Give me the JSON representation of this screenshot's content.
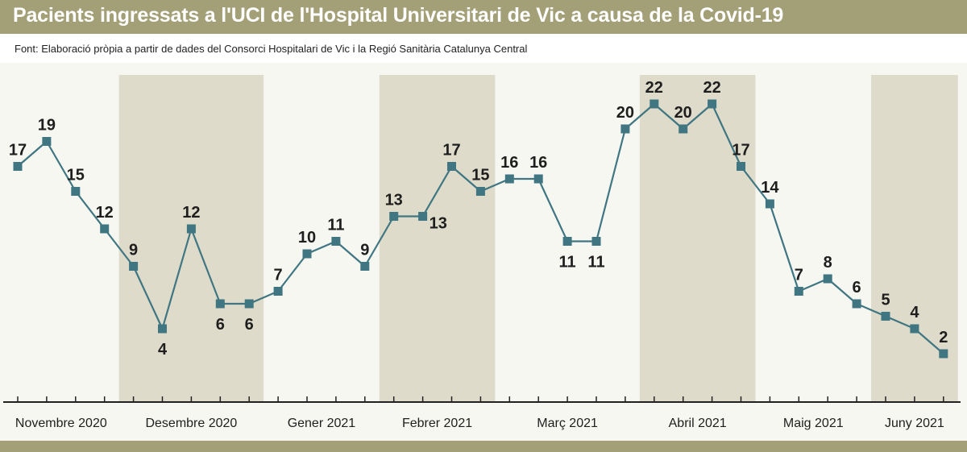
{
  "title": "Pacients ingressats a l'UCI de l'Hospital Universitari de Vic a causa de la Covid-19",
  "source": "Font: Elaboració pròpia a partir de dades del Consorci Hospitalari de Vic i la Regió Sanitària Catalunya Central",
  "colors": {
    "header": "#a39f77",
    "plot_background": "#f7f7f2",
    "shaded_band": "#dedbca",
    "line": "#3f7682",
    "marker": "#3f7682",
    "axis": "#222222"
  },
  "chart_data": {
    "type": "line",
    "title": "Pacients ingressats a l'UCI de l'Hospital Universitari de Vic a causa de la Covid-19",
    "xlabel": "",
    "ylabel": "",
    "ylim": [
      0,
      24
    ],
    "grid": false,
    "legend": "none",
    "values": [
      17,
      19,
      15,
      12,
      9,
      4,
      12,
      6,
      6,
      7,
      10,
      11,
      9,
      13,
      13,
      17,
      15,
      16,
      16,
      11,
      11,
      20,
      22,
      20,
      22,
      17,
      14,
      7,
      8,
      6,
      5,
      4,
      2
    ],
    "months": [
      {
        "label": "Novembre 2020",
        "points": 4,
        "shaded": false
      },
      {
        "label": "Desembre 2020",
        "points": 5,
        "shaded": true
      },
      {
        "label": "Gener 2021",
        "points": 4,
        "shaded": false
      },
      {
        "label": "Febrer 2021",
        "points": 4,
        "shaded": true
      },
      {
        "label": "Març 2021",
        "points": 5,
        "shaded": false
      },
      {
        "label": "Abril 2021",
        "points": 4,
        "shaded": true
      },
      {
        "label": "Maig 2021",
        "points": 4,
        "shaded": false
      },
      {
        "label": "Juny 2021",
        "points": 3,
        "shaded": true
      }
    ],
    "label_positions": [
      "above",
      "above",
      "above",
      "above",
      "above",
      "below",
      "above",
      "below",
      "below",
      "above",
      "above",
      "above",
      "above",
      "above",
      "right",
      "above",
      "above",
      "above",
      "above",
      "below",
      "below",
      "above",
      "above",
      "above",
      "above",
      "above",
      "above",
      "above",
      "above",
      "above",
      "above",
      "above",
      "above"
    ]
  }
}
